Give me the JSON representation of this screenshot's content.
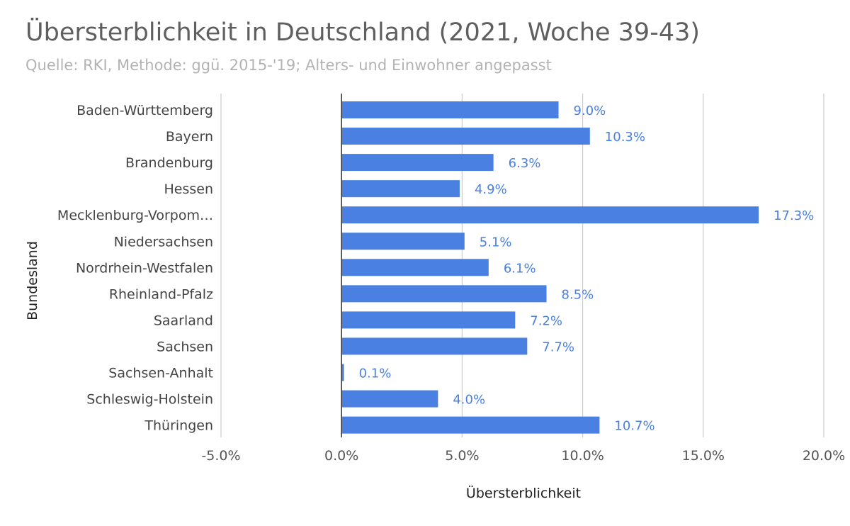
{
  "chart_data": {
    "type": "bar",
    "orientation": "horizontal",
    "title": "Übersterblichkeit in Deutschland (2021, Woche 39-43)",
    "subtitle": "Quelle: RKI, Methode: ggü. 2015-'19; Alters- und Einwohner angepasst",
    "xlabel": "Übersterblichkeit",
    "ylabel": "Bundesland",
    "xlim": [
      -5.0,
      20.0
    ],
    "x_ticks": [
      -5.0,
      0.0,
      5.0,
      10.0,
      15.0,
      20.0
    ],
    "x_tick_labels": [
      "-5.0%",
      "0.0%",
      "5.0%",
      "10.0%",
      "15.0%",
      "20.0%"
    ],
    "categories": [
      "Baden-Württemberg",
      "Bayern",
      "Brandenburg",
      "Hessen",
      "Mecklenburg-Vorpom…",
      "Niedersachsen",
      "Nordrhein-Westfalen",
      "Rheinland-Pfalz",
      "Saarland",
      "Sachsen",
      "Sachsen-Anhalt",
      "Schleswig-Holstein",
      "Thüringen"
    ],
    "values": [
      9.0,
      10.3,
      6.3,
      4.9,
      17.3,
      5.1,
      6.1,
      8.5,
      7.2,
      7.7,
      0.1,
      4.0,
      10.7
    ],
    "data_labels": [
      "9.0%",
      "10.3%",
      "6.3%",
      "4.9%",
      "17.3%",
      "5.1%",
      "6.1%",
      "8.5%",
      "7.2%",
      "7.7%",
      "0.1%",
      "4.0%",
      "10.7%"
    ],
    "grid": true,
    "legend": "none",
    "bar_color": "#4a80e2",
    "label_color": "#4a80e2"
  }
}
